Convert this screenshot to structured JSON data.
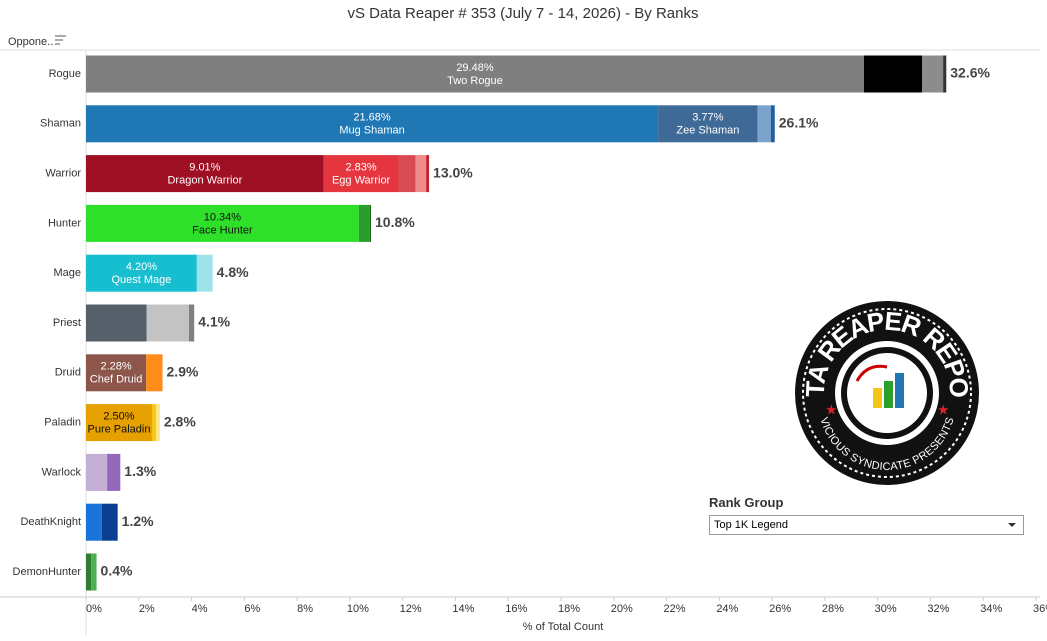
{
  "chart_data": {
    "type": "stacked-bar",
    "title": "vS Data Reaper # 353 (July 7 - 14, 2026) - By Ranks",
    "row_header": "Oppone..",
    "x_label": "% of Total Count",
    "xlim": [
      0,
      36
    ],
    "xticks": [
      {
        "value": 0,
        "label": "0%"
      },
      {
        "value": 2,
        "label": "2%"
      },
      {
        "value": 4,
        "label": "4%"
      },
      {
        "value": 6,
        "label": "6%"
      },
      {
        "value": 8,
        "label": "8%"
      },
      {
        "value": 10,
        "label": "10%"
      },
      {
        "value": 12,
        "label": "12%"
      },
      {
        "value": 14,
        "label": "14%"
      },
      {
        "value": 16,
        "label": "16%"
      },
      {
        "value": 18,
        "label": "18%"
      },
      {
        "value": 20,
        "label": "20%"
      },
      {
        "value": 22,
        "label": "22%"
      },
      {
        "value": 24,
        "label": "24%"
      },
      {
        "value": 26,
        "label": "26%"
      },
      {
        "value": 28,
        "label": "28%"
      },
      {
        "value": 30,
        "label": "30%"
      },
      {
        "value": 32,
        "label": "32%"
      },
      {
        "value": 34,
        "label": "34%"
      },
      {
        "value": 36,
        "label": "36%"
      }
    ],
    "rows": [
      {
        "category": "Rogue",
        "total": 32.6,
        "total_label": "32.6%",
        "segments": [
          {
            "name": "Two Rogue",
            "value": 29.48,
            "value_label": "29.48%",
            "color": "#7f7f7f"
          },
          {
            "value": 2.2,
            "color": "#000000"
          },
          {
            "value": 0.8,
            "color": "#8c8c8c"
          },
          {
            "value": 0.12,
            "color": "#333333"
          }
        ]
      },
      {
        "category": "Shaman",
        "total": 26.1,
        "total_label": "26.1%",
        "segments": [
          {
            "name": "Mug Shaman",
            "value": 21.68,
            "value_label": "21.68%",
            "color": "#1f77b4"
          },
          {
            "name": "Zee Shaman",
            "value": 3.77,
            "value_label": "3.77%",
            "color": "#3f6a98"
          },
          {
            "value": 0.5,
            "color": "#7ba3cc"
          },
          {
            "value": 0.15,
            "color": "#1f5f9f"
          }
        ]
      },
      {
        "category": "Warrior",
        "total": 13.0,
        "total_label": "13.0%",
        "segments": [
          {
            "name": "Dragon Warrior",
            "value": 9.01,
            "value_label": "9.01%",
            "color": "#9e0f23"
          },
          {
            "name": "Egg Warrior",
            "value": 2.83,
            "value_label": "2.83%",
            "color": "#e5353f"
          },
          {
            "value": 0.65,
            "color": "#d94b52"
          },
          {
            "value": 0.4,
            "color": "#f08c8c"
          },
          {
            "value": 0.11,
            "color": "#c0202f"
          }
        ]
      },
      {
        "category": "Hunter",
        "total": 10.8,
        "total_label": "10.8%",
        "segments": [
          {
            "name": "Face Hunter",
            "value": 10.34,
            "value_label": "10.34%",
            "color": "#2ee02a"
          },
          {
            "value": 0.42,
            "color": "#2a9e2a"
          },
          {
            "value": 0.04,
            "color": "#1a6a1a"
          }
        ]
      },
      {
        "category": "Mage",
        "total": 4.8,
        "total_label": "4.8%",
        "segments": [
          {
            "name": "Quest Mage",
            "value": 4.2,
            "value_label": "4.20%",
            "color": "#17becf"
          },
          {
            "value": 0.6,
            "color": "#9ee3ea"
          }
        ]
      },
      {
        "category": "Priest",
        "total": 4.1,
        "total_label": "4.1%",
        "segments": [
          {
            "value": 2.3,
            "color": "#55606b"
          },
          {
            "value": 1.6,
            "color": "#c3c3c3"
          },
          {
            "value": 0.2,
            "color": "#808080"
          }
        ]
      },
      {
        "category": "Druid",
        "total": 2.9,
        "total_label": "2.9%",
        "segments": [
          {
            "name": "Chef Druid",
            "value": 2.28,
            "value_label": "2.28%",
            "color": "#8c564b"
          },
          {
            "value": 0.62,
            "color": "#ff8c1a"
          }
        ]
      },
      {
        "category": "Paladin",
        "total": 2.8,
        "total_label": "2.8%",
        "segments": [
          {
            "name": "Pure Paladin",
            "value": 2.5,
            "value_label": "2.50%",
            "color": "#e6a000"
          },
          {
            "value": 0.15,
            "color": "#f5c518"
          },
          {
            "value": 0.15,
            "color": "#fde68a"
          }
        ]
      },
      {
        "category": "Warlock",
        "total": 1.3,
        "total_label": "1.3%",
        "segments": [
          {
            "value": 0.8,
            "color": "#c5b0d5"
          },
          {
            "value": 0.5,
            "color": "#9467bd"
          }
        ]
      },
      {
        "category": "DeathKnight",
        "total": 1.2,
        "total_label": "1.2%",
        "segments": [
          {
            "value": 0.6,
            "color": "#1a73d9"
          },
          {
            "value": 0.6,
            "color": "#0b3d91"
          }
        ]
      },
      {
        "category": "DemonHunter",
        "total": 0.4,
        "total_label": "0.4%",
        "segments": [
          {
            "value": 0.2,
            "color": "#2e7d32"
          },
          {
            "value": 0.2,
            "color": "#4caf50"
          }
        ]
      }
    ]
  },
  "filter": {
    "title": "Rank Group",
    "selected": "Top 1K Legend"
  },
  "logo": {
    "title": "DATA REAPER REPORT",
    "subtitle": "VICIOUS SYNDICATE PRESENTS"
  }
}
